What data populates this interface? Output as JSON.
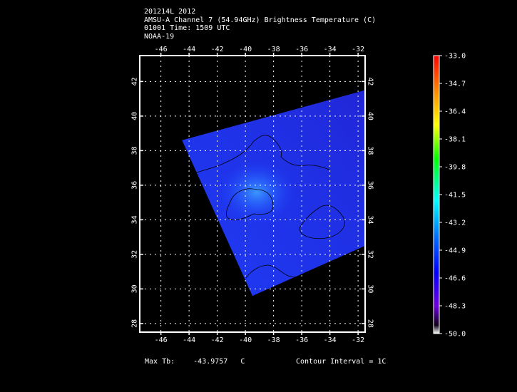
{
  "header": {
    "line1": "201214L 2012",
    "line2": "AMSU-A Channel 7 (54.94GHz) Brightness Temperature (C)",
    "line3": "01001 Time: 1509 UTC",
    "line4": "NOAA-19"
  },
  "map": {
    "lon_ticks": [
      "-46",
      "-44",
      "-42",
      "-40",
      "-38",
      "-36",
      "-34",
      "-32"
    ],
    "lat_ticks": [
      "28",
      "30",
      "32",
      "34",
      "36",
      "38",
      "40",
      "42"
    ],
    "lon_range": [
      -47.5,
      -31.5
    ],
    "lat_range": [
      27.5,
      43.5
    ],
    "grid": true,
    "swath_corners_lonlat": [
      [
        -44.5,
        38.6
      ],
      [
        -31.5,
        41.5
      ],
      [
        -31.5,
        32.5
      ],
      [
        -39.5,
        29.6
      ]
    ],
    "field_color": "#1f3cf5",
    "warm_spot_lonlat": [
      -39.2,
      35.6
    ],
    "contour_levels": [
      -44,
      -45,
      -46
    ]
  },
  "colorbar": {
    "labels": [
      "-33.0",
      "-34.7",
      "-36.4",
      "-38.1",
      "-39.8",
      "-41.5",
      "-43.2",
      "-44.9",
      "-46.6",
      "-48.3",
      "-50.0"
    ],
    "min": -50.0,
    "max": -33.0,
    "colors": [
      "#ff0000",
      "#ff8000",
      "#ffff00",
      "#00ff00",
      "#00ffff",
      "#0000ff",
      "#8000ff",
      "#ffffff"
    ]
  },
  "footer": {
    "max_tb_label": "Max Tb:",
    "max_tb_value": "-43.9757",
    "max_tb_unit": "C",
    "contour_interval": "Contour Interval = 1C"
  }
}
